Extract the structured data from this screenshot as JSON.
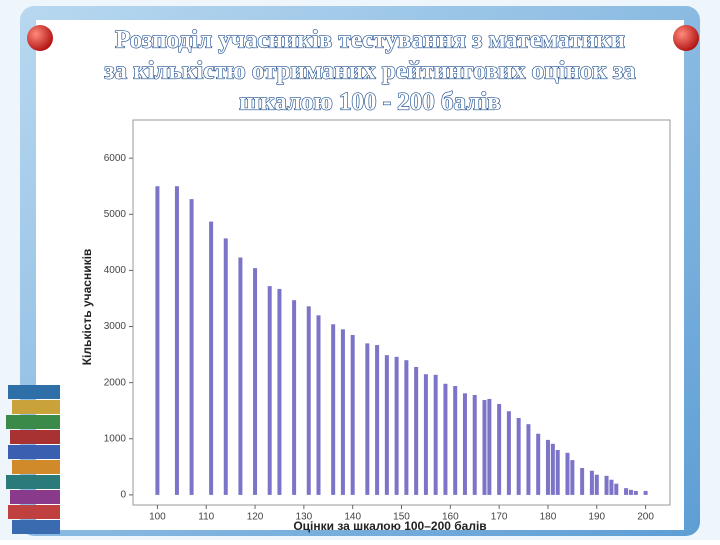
{
  "chart_data": {
    "type": "bar",
    "title": [
      "Розподіл учасників тестування з математики",
      "за кількістю отриманих рейтингових оцінок за",
      "шкалою 100 - 200 балів"
    ],
    "x_label": "Оцінки за шкалою 100–200 балів",
    "y_label": "Кількість учасників",
    "x": [
      100,
      104,
      107,
      111,
      114,
      117,
      120,
      123,
      125,
      128,
      131,
      133,
      136,
      138,
      140,
      143,
      145,
      147,
      149,
      151,
      153,
      155,
      157,
      159,
      161,
      163,
      165,
      167,
      168,
      170,
      172,
      174,
      176,
      178,
      180,
      181,
      182,
      184,
      185,
      187,
      189,
      190,
      192,
      193,
      194,
      196,
      197,
      198,
      200
    ],
    "values": [
      5500,
      5500,
      5270,
      4870,
      4570,
      4230,
      4040,
      3720,
      3670,
      3470,
      3360,
      3200,
      3040,
      2950,
      2850,
      2700,
      2670,
      2490,
      2460,
      2400,
      2280,
      2150,
      2140,
      1980,
      1940,
      1810,
      1780,
      1690,
      1710,
      1620,
      1490,
      1370,
      1260,
      1090,
      980,
      910,
      800,
      750,
      620,
      480,
      430,
      360,
      340,
      270,
      200,
      120,
      90,
      70,
      70
    ],
    "color": "#7b74c8",
    "xlim": [
      95,
      205
    ],
    "xticks": [
      100,
      110,
      120,
      130,
      140,
      150,
      160,
      170,
      180,
      190,
      200
    ],
    "ylim": [
      -180,
      6680
    ],
    "yticks": [
      0,
      1000,
      2000,
      3000,
      4000,
      5000,
      6000
    ]
  }
}
